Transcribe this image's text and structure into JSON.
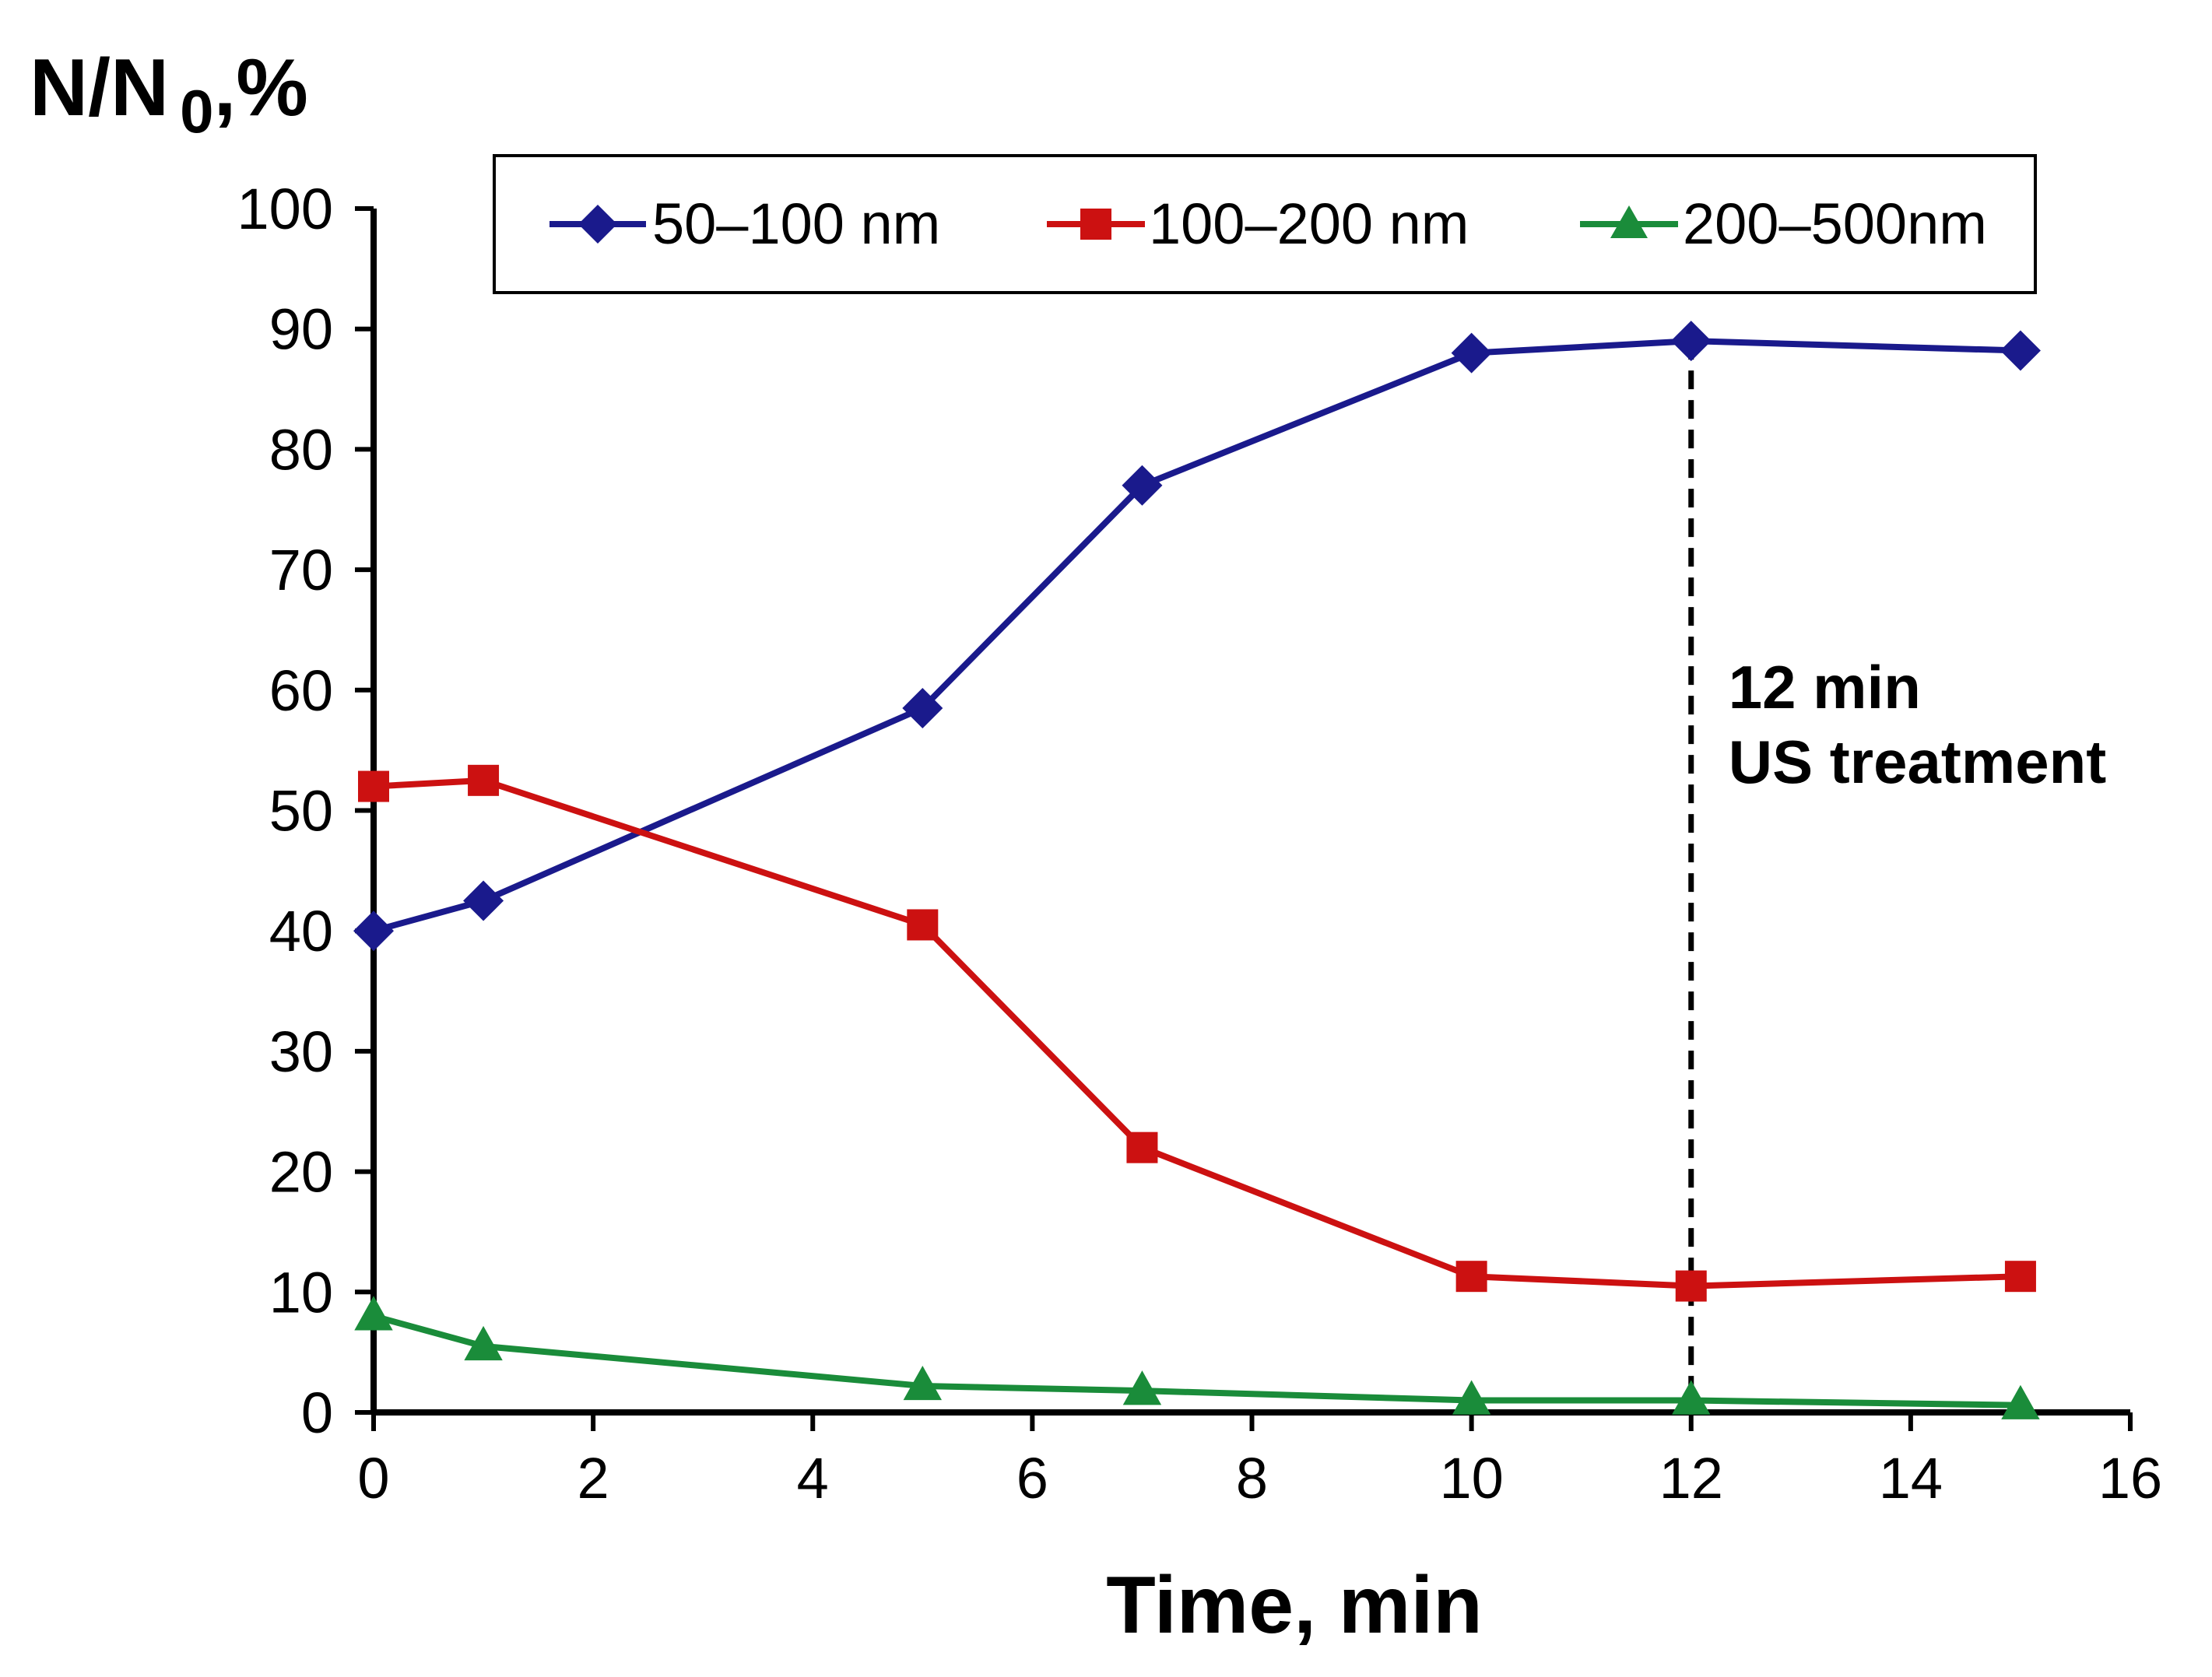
{
  "chart_data": {
    "type": "line",
    "title": "",
    "ylabel_main": "N/N",
    "ylabel_sub": "0",
    "ylabel_suffix": ",%",
    "xlabel": "Time, min",
    "xlim": [
      0,
      16
    ],
    "ylim": [
      0,
      100
    ],
    "xticks": [
      0,
      2,
      4,
      6,
      8,
      10,
      12,
      14,
      16
    ],
    "yticks": [
      0,
      10,
      20,
      30,
      40,
      50,
      60,
      70,
      80,
      90,
      100
    ],
    "grid": false,
    "legend_position": "top",
    "x": [
      0,
      1,
      5,
      7,
      10,
      12,
      15
    ],
    "series": [
      {
        "name": "50–100 nm",
        "color": "#1a1a8c",
        "marker": "diamond",
        "values": [
          40,
          42.5,
          58.5,
          77,
          88,
          89,
          88.2
        ]
      },
      {
        "name": "100–200 nm",
        "color": "#cc1111",
        "marker": "square",
        "values": [
          52,
          52.5,
          40.5,
          22,
          11.3,
          10.5,
          11.3
        ]
      },
      {
        "name": "200–500nm",
        "color": "#1a8c3a",
        "marker": "triangle",
        "values": [
          8,
          5.5,
          2.2,
          1.8,
          1,
          1,
          0.6
        ]
      }
    ],
    "annotation": {
      "line1": "12 min",
      "line2": "US treatment",
      "x": 12
    }
  }
}
